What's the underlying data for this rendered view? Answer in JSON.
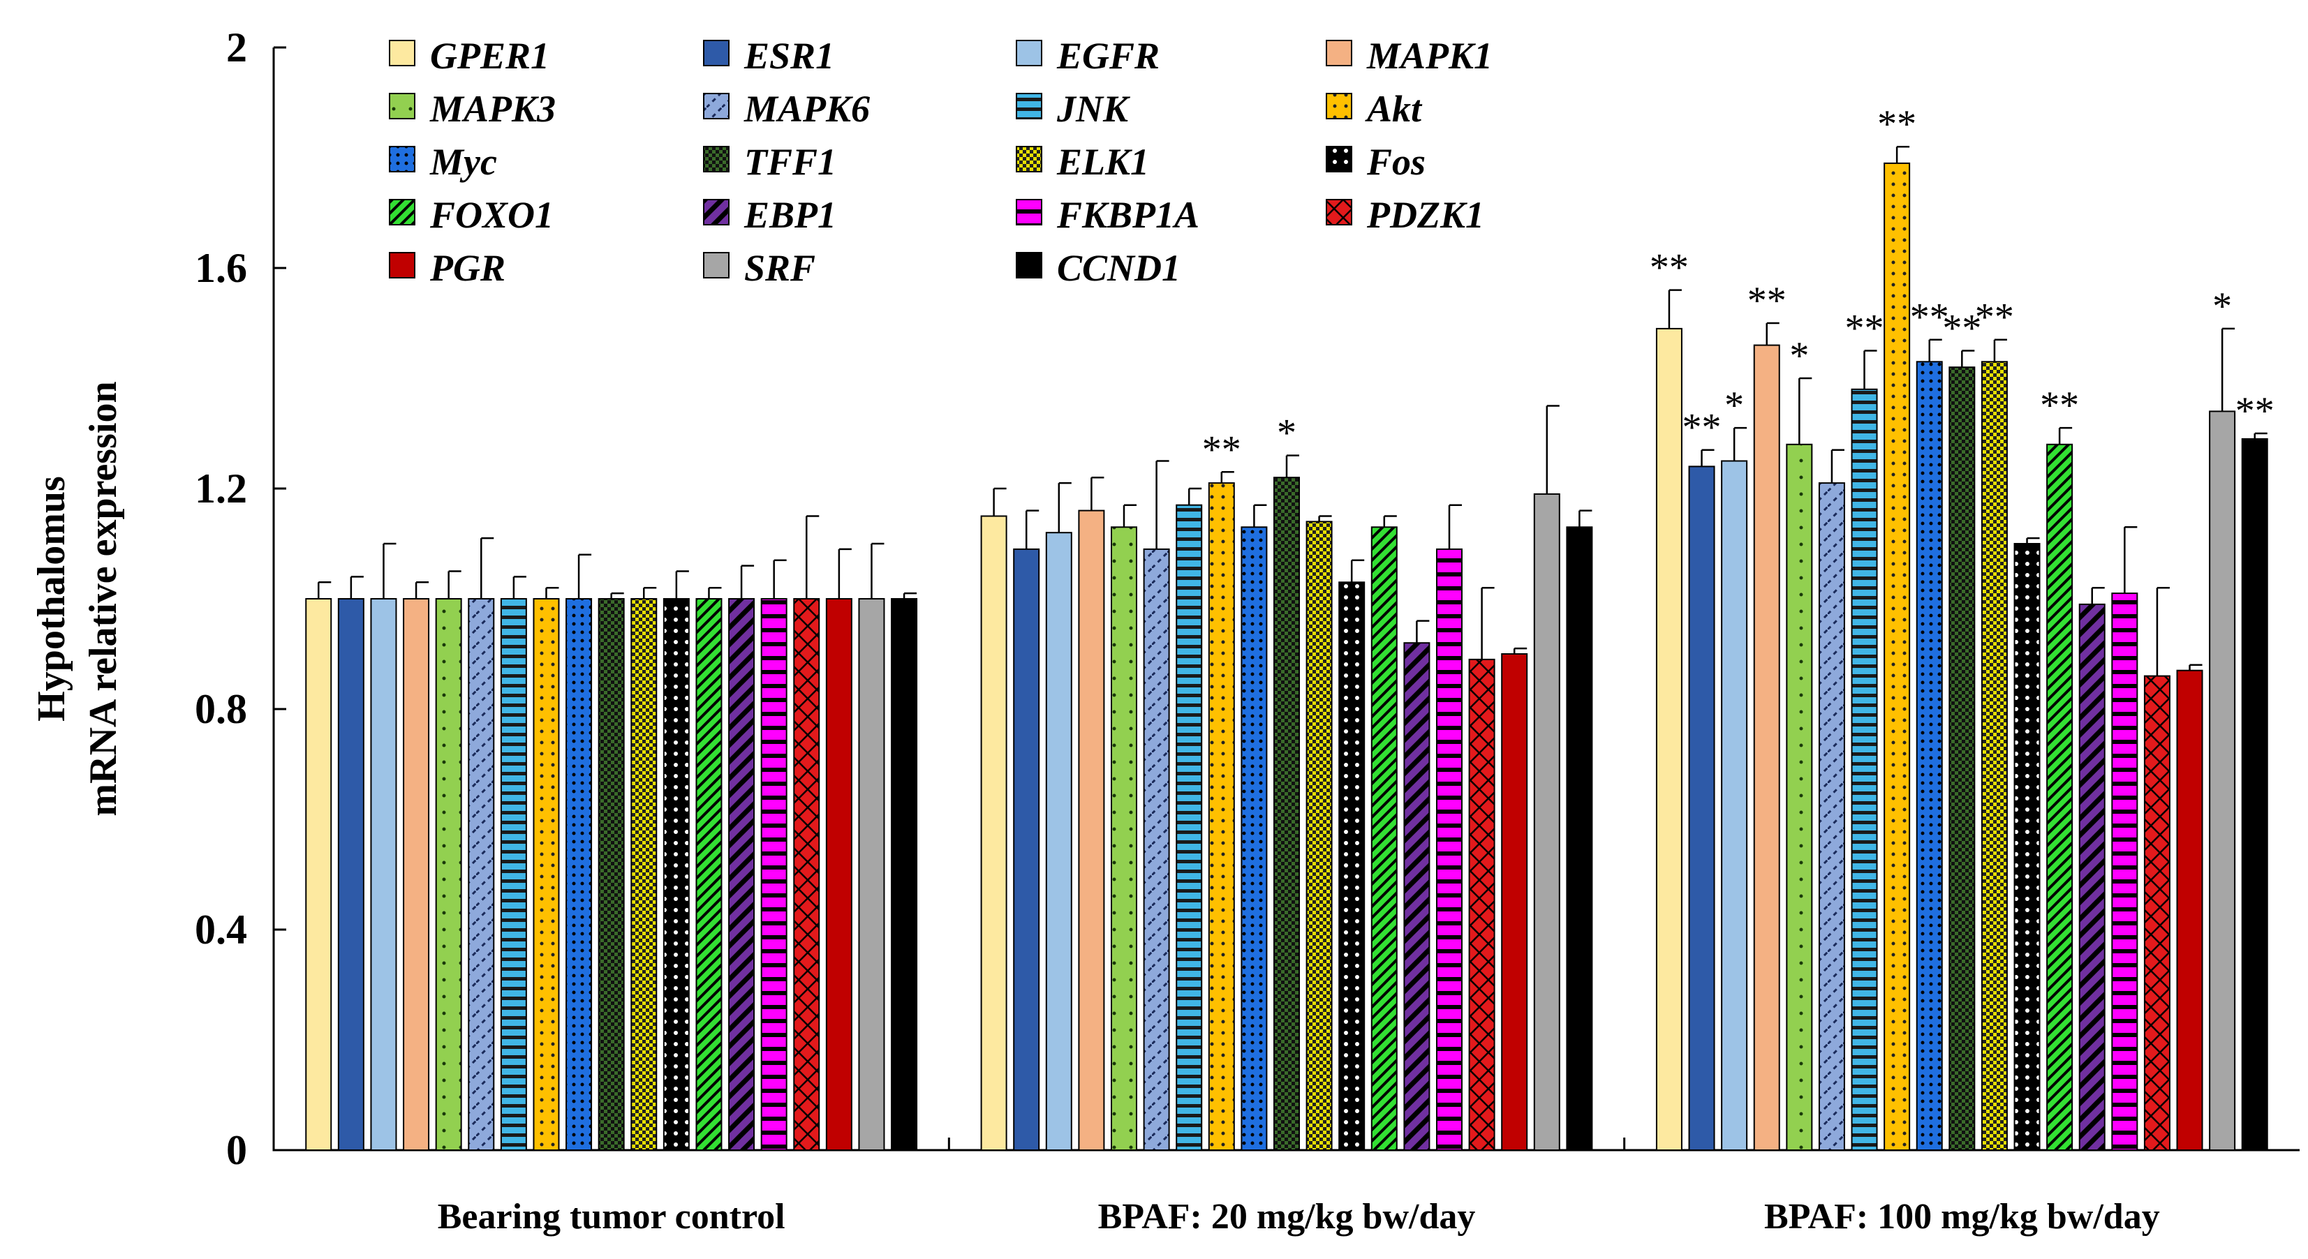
{
  "chart_data": {
    "type": "bar",
    "title": "",
    "ylabel_lines": [
      "Hypothalomus",
      "mRNA relative expression"
    ],
    "xlabel": "",
    "ylim": [
      0,
      2
    ],
    "yticks": [
      0,
      0.4,
      0.8,
      1.2,
      1.6,
      2
    ],
    "ytick_labels": [
      "0",
      "0.4",
      "0.8",
      "1.2",
      "1.6",
      "2"
    ],
    "legend_position": "top-left",
    "categories": [
      "Bearing tumor control",
      "BPAF: 20 mg/kg bw/day",
      "BPAF: 100 mg/kg bw/day"
    ],
    "series": [
      {
        "name": "GPER1",
        "color": "#FDE9A0",
        "pattern": "solid",
        "values": [
          1.0,
          1.15,
          1.49
        ],
        "errors": [
          0.03,
          0.05,
          0.07
        ],
        "sig": [
          "",
          "",
          "**"
        ]
      },
      {
        "name": "ESR1",
        "color": "#2E5AA8",
        "pattern": "solid",
        "values": [
          1.0,
          1.09,
          1.24
        ],
        "errors": [
          0.04,
          0.07,
          0.03
        ],
        "sig": [
          "",
          "",
          "**"
        ]
      },
      {
        "name": "EGFR",
        "color": "#9DC3E6",
        "pattern": "solid",
        "values": [
          1.0,
          1.12,
          1.25
        ],
        "errors": [
          0.1,
          0.09,
          0.06
        ],
        "sig": [
          "",
          "",
          "*"
        ]
      },
      {
        "name": "MAPK1",
        "color": "#F4B183",
        "pattern": "solid",
        "values": [
          1.0,
          1.16,
          1.46
        ],
        "errors": [
          0.03,
          0.06,
          0.04
        ],
        "sig": [
          "",
          "",
          "**"
        ]
      },
      {
        "name": "MAPK3",
        "color": "#92D050",
        "pattern": "dots-sparse",
        "values": [
          1.0,
          1.13,
          1.28
        ],
        "errors": [
          0.05,
          0.04,
          0.12
        ],
        "sig": [
          "",
          "",
          "*"
        ]
      },
      {
        "name": "MAPK6",
        "color": "#8EA9DB",
        "pattern": "diag-dash",
        "values": [
          1.0,
          1.09,
          1.21
        ],
        "errors": [
          0.11,
          0.16,
          0.06
        ],
        "sig": [
          "",
          "",
          ""
        ]
      },
      {
        "name": "JNK",
        "color": "#41B6E6",
        "pattern": "hlines",
        "values": [
          1.0,
          1.17,
          1.38
        ],
        "errors": [
          0.04,
          0.03,
          0.07
        ],
        "sig": [
          "",
          "",
          "**"
        ]
      },
      {
        "name": "Akt",
        "color": "#FFC000",
        "pattern": "dots",
        "values": [
          1.0,
          1.21,
          1.79
        ],
        "errors": [
          0.02,
          0.02,
          0.03
        ],
        "sig": [
          "",
          "**",
          "**"
        ]
      },
      {
        "name": "Myc",
        "color": "#1F6FE0",
        "pattern": "dots-dense",
        "values": [
          1.0,
          1.13,
          1.43
        ],
        "errors": [
          0.08,
          0.04,
          0.04
        ],
        "sig": [
          "",
          "",
          "**"
        ]
      },
      {
        "name": "TFF1",
        "color": "#3A6B2A",
        "pattern": "check",
        "values": [
          1.0,
          1.22,
          1.42
        ],
        "errors": [
          0.01,
          0.04,
          0.03
        ],
        "sig": [
          "",
          "*",
          "**"
        ]
      },
      {
        "name": "ELK1",
        "color": "#E8E000",
        "pattern": "check-fine",
        "values": [
          1.0,
          1.14,
          1.43
        ],
        "errors": [
          0.02,
          0.01,
          0.04
        ],
        "sig": [
          "",
          "",
          "**"
        ]
      },
      {
        "name": "Fos",
        "color": "#000000",
        "pattern": "dots-white",
        "values": [
          1.0,
          1.03,
          1.1
        ],
        "errors": [
          0.05,
          0.04,
          0.01
        ],
        "sig": [
          "",
          "",
          ""
        ]
      },
      {
        "name": "FOXO1",
        "color": "#33E033",
        "pattern": "diag",
        "values": [
          1.0,
          1.13,
          1.28
        ],
        "errors": [
          0.02,
          0.02,
          0.03
        ],
        "sig": [
          "",
          "",
          "**"
        ]
      },
      {
        "name": "EBP1",
        "color": "#7030A0",
        "pattern": "diag-wide",
        "values": [
          1.0,
          0.92,
          0.99
        ],
        "errors": [
          0.06,
          0.04,
          0.03
        ],
        "sig": [
          "",
          "",
          ""
        ]
      },
      {
        "name": "FKBP1A",
        "color": "#FF00FF",
        "pattern": "hlines-wide",
        "values": [
          1.0,
          1.09,
          1.01
        ],
        "errors": [
          0.07,
          0.08,
          0.12
        ],
        "sig": [
          "",
          "",
          ""
        ]
      },
      {
        "name": "PDZK1",
        "color": "#E31A1C",
        "pattern": "crosshatch",
        "values": [
          1.0,
          0.89,
          0.86
        ],
        "errors": [
          0.15,
          0.13,
          0.16
        ],
        "sig": [
          "",
          "",
          ""
        ]
      },
      {
        "name": "PGR",
        "color": "#C00000",
        "pattern": "solid",
        "values": [
          1.0,
          0.9,
          0.87
        ],
        "errors": [
          0.09,
          0.01,
          0.01
        ],
        "sig": [
          "",
          "",
          ""
        ]
      },
      {
        "name": "SRF",
        "color": "#A6A6A6",
        "pattern": "solid",
        "values": [
          1.0,
          1.19,
          1.34
        ],
        "errors": [
          0.1,
          0.16,
          0.15
        ],
        "sig": [
          "",
          "",
          "*"
        ]
      },
      {
        "name": "CCND1",
        "color": "#000000",
        "pattern": "solid",
        "values": [
          1.0,
          1.13,
          1.29
        ],
        "errors": [
          0.01,
          0.03,
          0.01
        ],
        "sig": [
          "",
          "",
          "**"
        ]
      }
    ]
  }
}
